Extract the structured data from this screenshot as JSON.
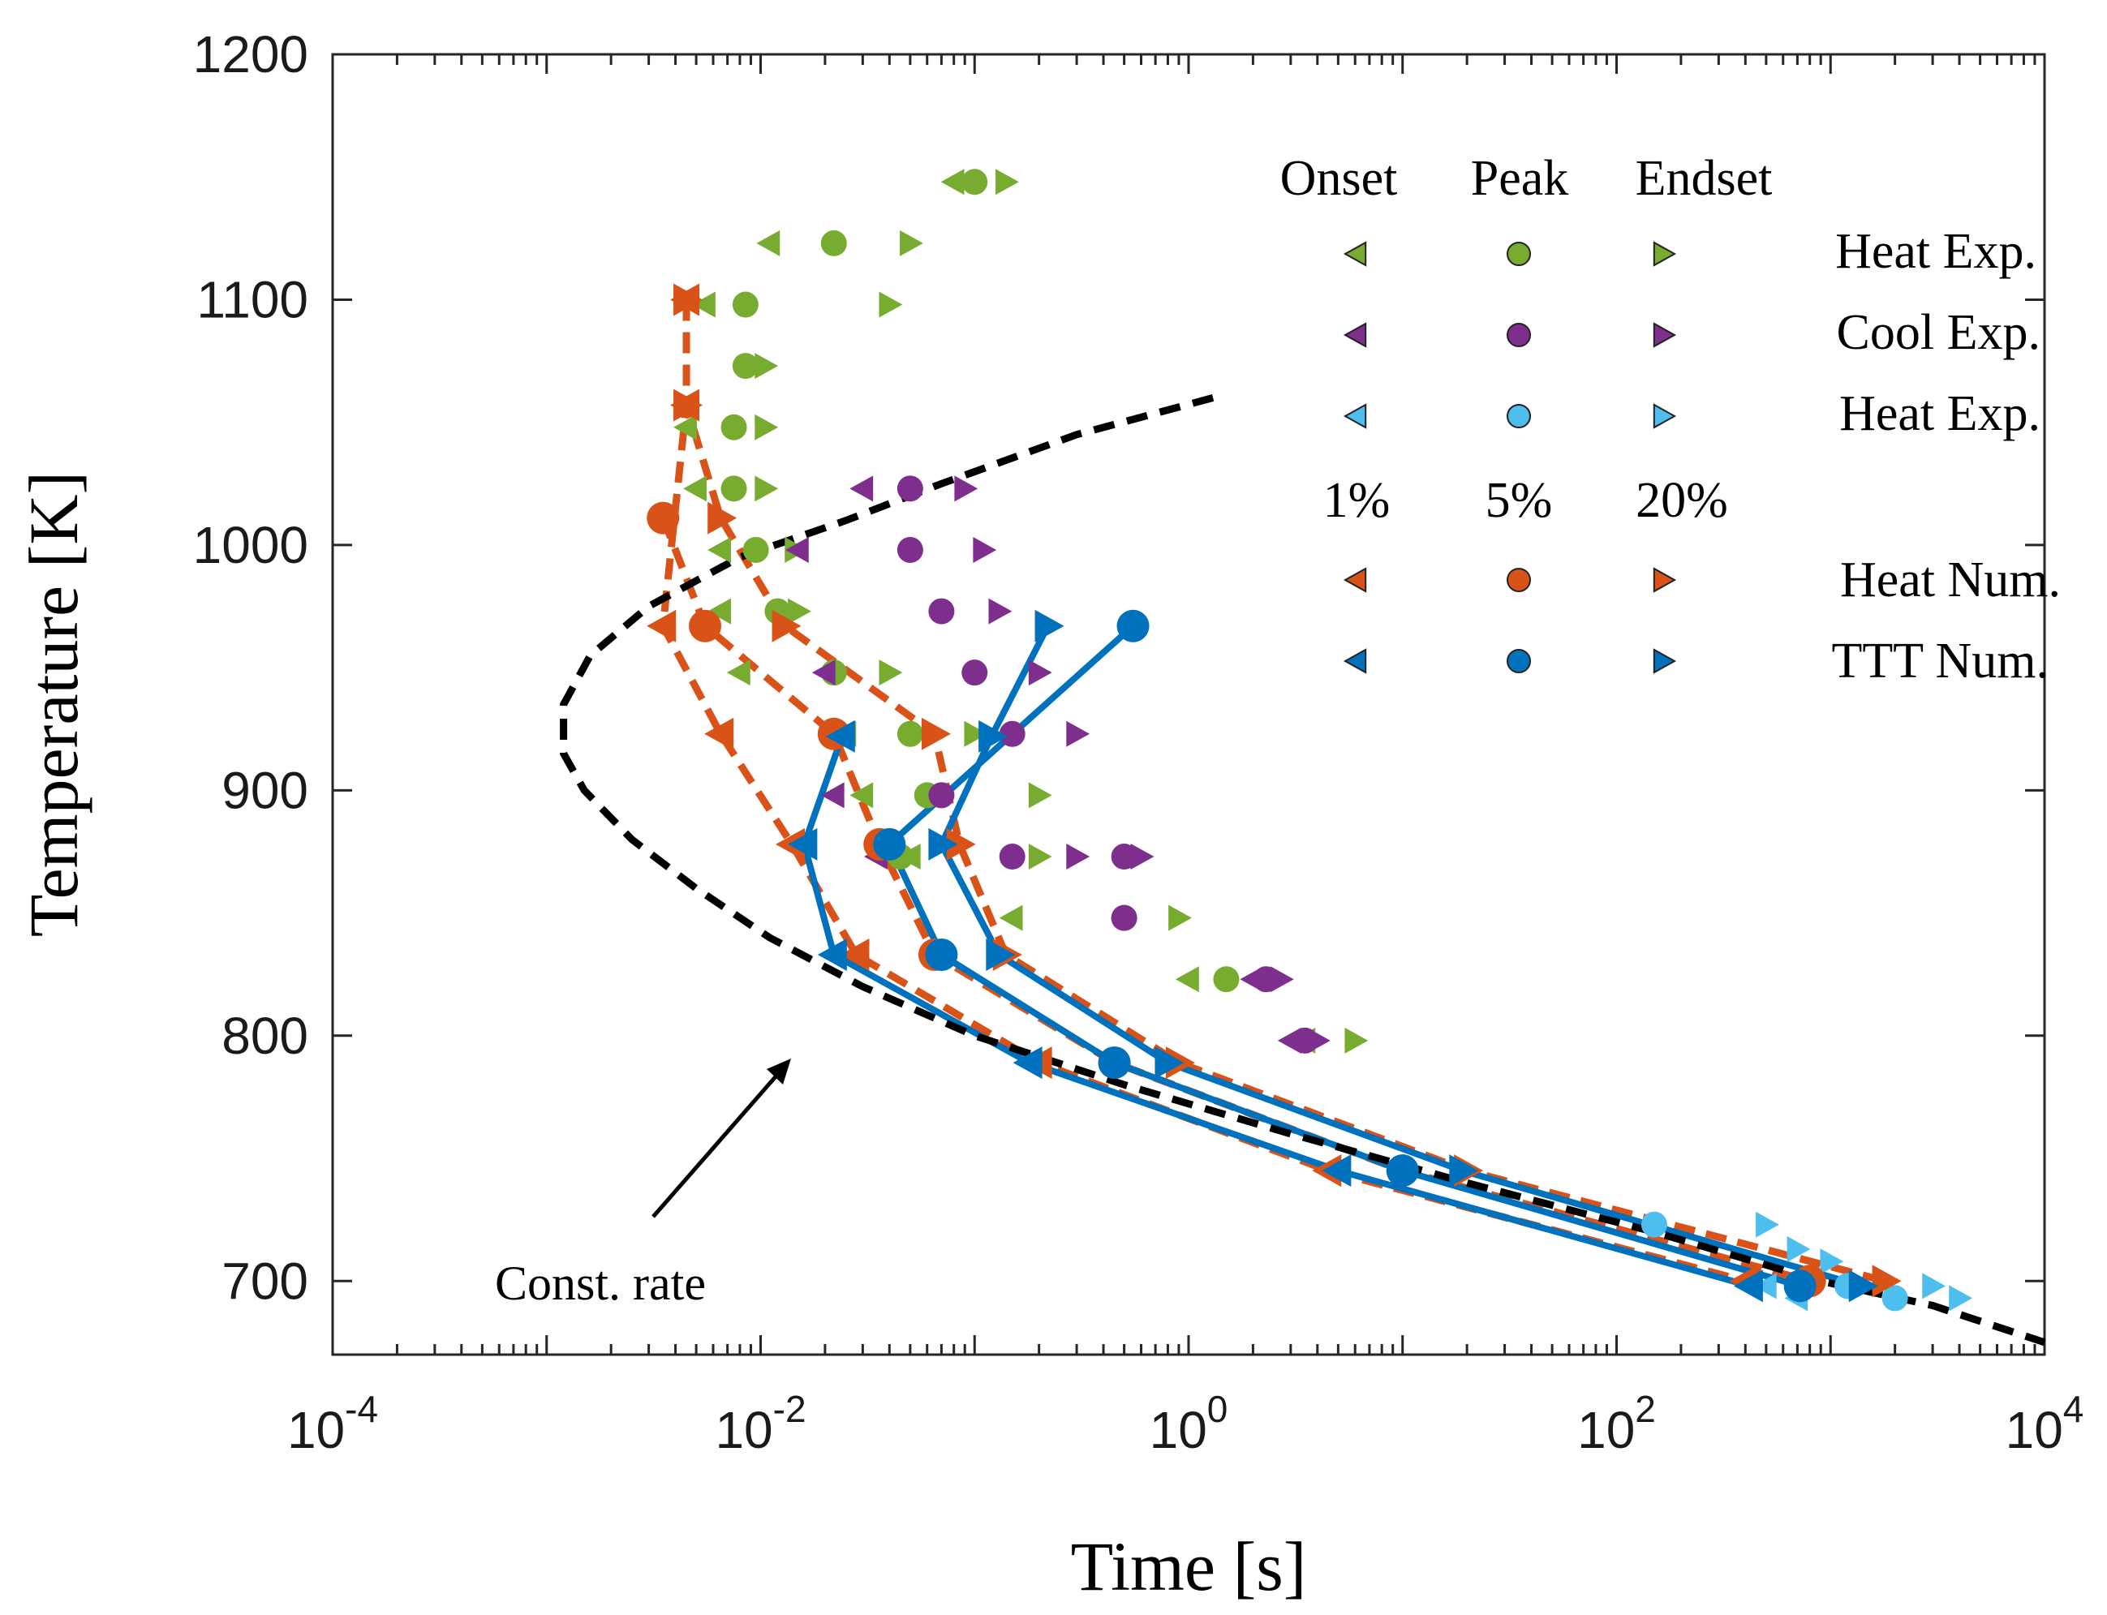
{
  "chart_data": {
    "type": "scatter",
    "title": "",
    "xlabel": "Time [s]",
    "ylabel": "Temperature [K]",
    "xscale": "log",
    "xlim": [
      0.0001,
      10000
    ],
    "ylim": [
      670,
      1200
    ],
    "x_ticks": [
      {
        "value": 0.0001,
        "base": "10",
        "exp": "-4"
      },
      {
        "value": 0.01,
        "base": "10",
        "exp": "-2"
      },
      {
        "value": 1,
        "base": "10",
        "exp": "0"
      },
      {
        "value": 100,
        "base": "10",
        "exp": "2"
      },
      {
        "value": 10000,
        "base": "10",
        "exp": "4"
      }
    ],
    "y_ticks": [
      700,
      800,
      900,
      1000,
      1100,
      1200
    ],
    "colors": {
      "heat_exp_green": "#77ac30",
      "cool_exp_purple": "#7e2f8e",
      "heat_exp_cyan": "#4dbeee",
      "heat_num_orange": "#d95319",
      "ttt_num_blue": "#0072bd",
      "const_rate_black": "#000000"
    },
    "legend": {
      "header_onset": "Onset",
      "header_peak": "Peak",
      "header_endset": "Endset",
      "header_1pct": "1%",
      "header_5pct": "5%",
      "header_20pct": "20%",
      "rows": [
        {
          "label": "Heat Exp.",
          "color": "#77ac30"
        },
        {
          "label": "Cool Exp.",
          "color": "#7e2f8e"
        },
        {
          "label": "Heat Exp.",
          "color": "#4dbeee"
        },
        {
          "label": "Heat Num.",
          "color": "#d95319"
        },
        {
          "label": "TTT Num.",
          "color": "#0072bd"
        }
      ]
    },
    "annotation": {
      "text": "Const. rate",
      "arrow_to": {
        "x": 0.015,
        "y": 790
      }
    },
    "series": [
      {
        "name": "Heat Exp. (green)",
        "color": "#77ac30",
        "onset": [
          [
            0.08,
            1148
          ],
          [
            0.011,
            1123
          ],
          [
            0.0055,
            1098
          ],
          [
            0.0045,
            1048
          ],
          [
            0.005,
            1023
          ],
          [
            0.0065,
            998
          ],
          [
            0.0065,
            973
          ],
          [
            0.008,
            948
          ],
          [
            0.025,
            923
          ],
          [
            0.03,
            898
          ],
          [
            0.05,
            873
          ],
          [
            0.15,
            848
          ],
          [
            1.0,
            823
          ],
          [
            3.5,
            798
          ]
        ],
        "peak": [
          [
            0.1,
            1148
          ],
          [
            0.022,
            1123
          ],
          [
            0.0085,
            1098
          ],
          [
            0.0085,
            1073
          ],
          [
            0.0075,
            1048
          ],
          [
            0.0075,
            1023
          ],
          [
            0.0095,
            998
          ],
          [
            0.012,
            973
          ],
          [
            0.022,
            948
          ],
          [
            0.05,
            923
          ],
          [
            0.06,
            898
          ],
          [
            0.045,
            873
          ],
          [
            0.5,
            848
          ],
          [
            1.5,
            823
          ]
        ],
        "endset": [
          [
            0.14,
            1148
          ],
          [
            0.05,
            1123
          ],
          [
            0.04,
            1098
          ],
          [
            0.0105,
            1073
          ],
          [
            0.0105,
            1048
          ],
          [
            0.0105,
            1023
          ],
          [
            0.0145,
            998
          ],
          [
            0.015,
            973
          ],
          [
            0.04,
            948
          ],
          [
            0.1,
            923
          ],
          [
            0.2,
            898
          ],
          [
            0.2,
            873
          ],
          [
            0.9,
            848
          ],
          [
            6.0,
            798
          ]
        ]
      },
      {
        "name": "Cool Exp. (purple)",
        "color": "#7e2f8e",
        "onset": [
          [
            0.03,
            1023
          ],
          [
            0.015,
            998
          ],
          [
            0.02,
            948
          ],
          [
            0.022,
            898
          ],
          [
            0.035,
            873
          ],
          [
            2.0,
            823
          ],
          [
            3.0,
            798
          ]
        ],
        "peak": [
          [
            0.05,
            1023
          ],
          [
            0.05,
            998
          ],
          [
            0.07,
            973
          ],
          [
            0.1,
            948
          ],
          [
            0.15,
            923
          ],
          [
            0.07,
            898
          ],
          [
            0.15,
            873
          ],
          [
            0.5,
            873
          ],
          [
            0.5,
            848
          ],
          [
            2.3,
            823
          ],
          [
            3.5,
            798
          ]
        ],
        "endset": [
          [
            0.09,
            1023
          ],
          [
            0.11,
            998
          ],
          [
            0.13,
            973
          ],
          [
            0.2,
            948
          ],
          [
            0.3,
            923
          ],
          [
            0.3,
            873
          ],
          [
            0.6,
            873
          ],
          [
            2.7,
            823
          ],
          [
            4.0,
            798
          ]
        ]
      },
      {
        "name": "Heat Exp. (cyan)",
        "color": "#4dbeee",
        "onset": [
          [
            500,
            698
          ],
          [
            700,
            693
          ]
        ],
        "peak": [
          [
            150,
            723
          ],
          [
            1200,
            698
          ],
          [
            2000,
            693
          ]
        ],
        "endset": [
          [
            500,
            723
          ],
          [
            700,
            713
          ],
          [
            1000,
            708
          ],
          [
            3000,
            698
          ],
          [
            4000,
            693
          ]
        ]
      },
      {
        "name": "Heat Num. (orange, dashed)",
        "color": "#d95319",
        "onset": [
          [
            0.0045,
            1100
          ],
          [
            0.0045,
            1057
          ],
          [
            0.0035,
            967
          ],
          [
            0.0065,
            923
          ],
          [
            0.014,
            878
          ],
          [
            0.028,
            833
          ],
          [
            0.2,
            789
          ],
          [
            4.5,
            745
          ],
          [
            400,
            700
          ]
        ],
        "peak": [
          [
            0.0035,
            1011
          ],
          [
            0.0055,
            967
          ],
          [
            0.022,
            923
          ],
          [
            0.036,
            878
          ],
          [
            0.065,
            833
          ],
          [
            0.45,
            789
          ],
          [
            10,
            745
          ],
          [
            800,
            700
          ]
        ],
        "endset": [
          [
            0.0045,
            1100
          ],
          [
            0.0045,
            1057
          ],
          [
            0.0065,
            1011
          ],
          [
            0.013,
            967
          ],
          [
            0.065,
            923
          ],
          [
            0.085,
            878
          ],
          [
            0.14,
            833
          ],
          [
            0.9,
            789
          ],
          [
            20,
            745
          ],
          [
            1800,
            700
          ]
        ]
      },
      {
        "name": "TTT Num. (blue, solid)",
        "color": "#0072bd",
        "onset": [
          [
            0.024,
            922
          ],
          [
            0.016,
            878
          ],
          [
            0.022,
            833
          ],
          [
            0.18,
            789
          ],
          [
            5.0,
            745
          ],
          [
            420,
            698
          ]
        ],
        "peak": [
          [
            0.55,
            967
          ],
          [
            0.04,
            878
          ],
          [
            0.07,
            833
          ],
          [
            0.45,
            789
          ],
          [
            10,
            745
          ],
          [
            720,
            698
          ]
        ],
        "endset": [
          [
            0.22,
            967
          ],
          [
            0.12,
            922
          ],
          [
            0.07,
            878
          ],
          [
            0.13,
            833
          ],
          [
            0.8,
            789
          ],
          [
            19,
            745
          ],
          [
            1400,
            698
          ]
        ]
      },
      {
        "name": "Const. rate (black, dashed)",
        "color": "#000000",
        "curve": [
          [
            1.3,
            1060
          ],
          [
            0.3,
            1045
          ],
          [
            0.07,
            1025
          ],
          [
            0.025,
            1010
          ],
          [
            0.008,
            995
          ],
          [
            0.003,
            975
          ],
          [
            0.0016,
            955
          ],
          [
            0.0012,
            935
          ],
          [
            0.0012,
            915
          ],
          [
            0.0015,
            900
          ],
          [
            0.0025,
            880
          ],
          [
            0.005,
            860
          ],
          [
            0.011,
            840
          ],
          [
            0.03,
            820
          ],
          [
            0.1,
            800
          ],
          [
            0.5,
            780
          ],
          [
            3,
            760
          ],
          [
            20,
            740
          ],
          [
            150,
            720
          ],
          [
            900,
            700
          ],
          [
            3000,
            690
          ],
          [
            10000,
            675
          ]
        ]
      }
    ]
  }
}
